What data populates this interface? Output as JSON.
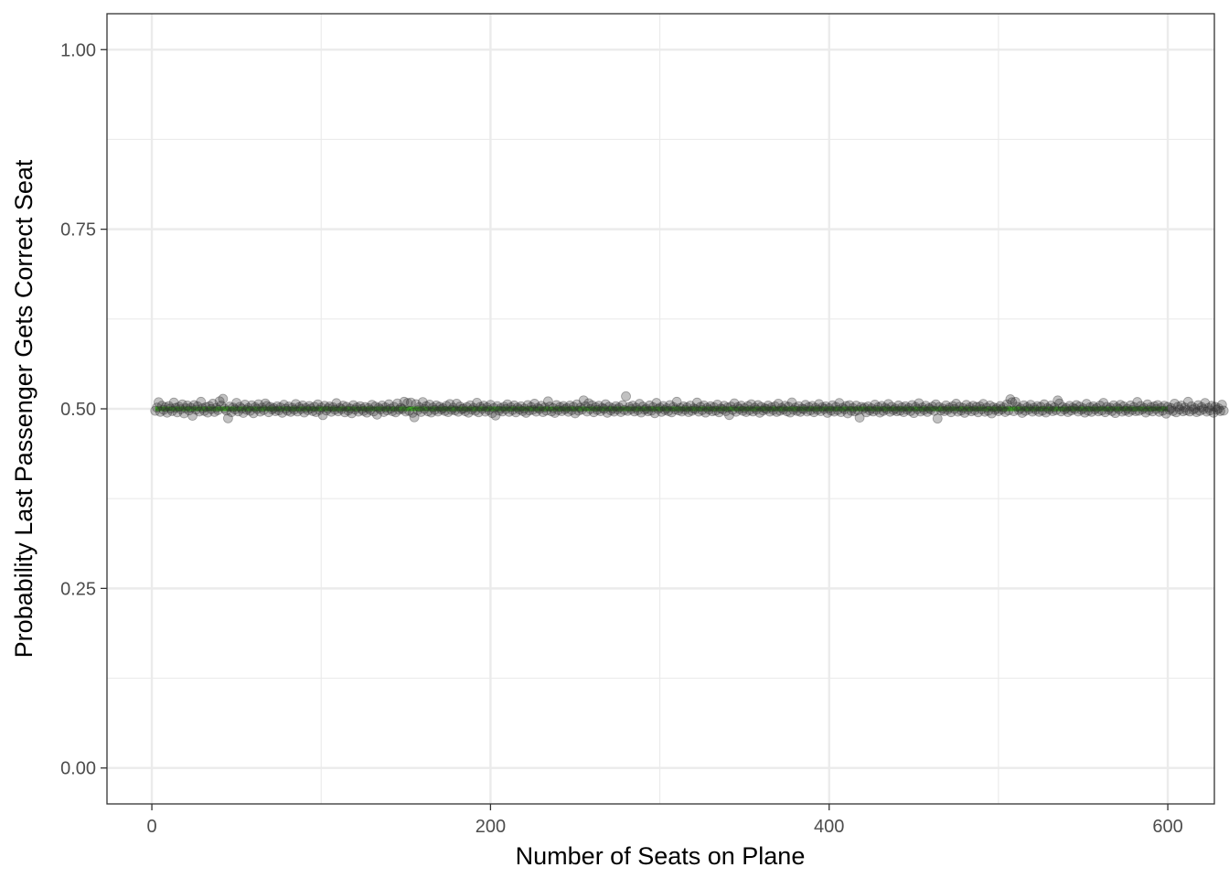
{
  "chart_data": {
    "type": "scatter",
    "title": "",
    "xlabel": "Number of Seats on Plane",
    "ylabel": "Probability Last Passenger Gets Correct Seat",
    "xlim": [
      -26.5,
      627.5
    ],
    "ylim": [
      -0.05,
      1.05
    ],
    "x_ticks": [
      0,
      200,
      400,
      600
    ],
    "x_tick_labels": [
      "0",
      "200",
      "400",
      "600"
    ],
    "y_ticks": [
      0.0,
      0.25,
      0.5,
      0.75,
      1.0
    ],
    "y_tick_labels": [
      "0.00",
      "0.25",
      "0.50",
      "0.75",
      "1.00"
    ],
    "x_minor_grid": [
      100,
      300,
      500
    ],
    "y_minor_grid": [
      0.125,
      0.375,
      0.625,
      0.875
    ],
    "grid": true,
    "legend": "none",
    "theme": "bw",
    "point_color": "#333333",
    "point_alpha": 0.3,
    "reference_line": {
      "y": 0.5,
      "x_range": [
        2,
        600
      ],
      "color": "#33ff00"
    },
    "series": [
      {
        "x_start": 2,
        "x_step": 1,
        "values_note_excluded": true,
        "y": [
          0.4973,
          0.5017,
          0.5092,
          0.4958,
          0.5043,
          0.4985,
          0.5021,
          0.4946,
          0.5038,
          0.5004,
          0.4969,
          0.5087,
          0.5012,
          0.4951,
          0.5029,
          0.4994,
          0.5061,
          0.4937,
          0.5008,
          0.5046,
          0.4978,
          0.5015,
          0.4904,
          0.5052,
          0.4989,
          0.5034,
          0.4962,
          0.5098,
          0.5007,
          0.4971,
          0.5024,
          0.4948,
          0.5036,
          0.4996,
          0.5071,
          0.4957,
          0.5013,
          0.4982,
          0.5105,
          0.5045,
          0.5139,
          0.5002,
          0.4976,
          0.4868,
          0.5031,
          0.4954,
          0.5018,
          0.4991,
          0.5083,
          0.4965,
          0.5027,
          0.5003,
          0.4943,
          0.5058,
          0.4986,
          0.5011,
          0.4972,
          0.5049,
          0.4939,
          0.5022,
          0.4998,
          0.5064,
          0.4961,
          0.5016,
          0.4983,
          0.5075,
          0.5041,
          0.4953,
          0.5026,
          0.4992,
          0.5009,
          0.4967,
          0.5035,
          0.4979,
          0.5019,
          0.4945,
          0.5057,
          0.5001,
          0.4974,
          0.5032,
          0.4958,
          0.5014,
          0.4987,
          0.5067,
          0.4963,
          0.5023,
          0.4996,
          0.5048,
          0.4949,
          0.5011,
          0.4981,
          0.5039,
          0.5005,
          0.4969,
          0.5028,
          0.4955,
          0.5062,
          0.4984,
          0.5017,
          0.4912,
          0.5042,
          0.4977,
          0.5006,
          0.5033,
          0.4959,
          0.5021,
          0.4988,
          0.5079,
          0.4966,
          0.5013,
          0.4994,
          0.5044,
          0.4952,
          0.5029,
          0.4975,
          0.5004,
          0.4938,
          0.5051,
          0.4989,
          0.5018,
          0.4961,
          0.5037,
          0.4997,
          0.4971,
          0.5025,
          0.4947,
          0.5009,
          0.4983,
          0.5056,
          0.4964,
          0.5032,
          0.4919,
          0.5014,
          0.4992,
          0.5046,
          0.4956,
          0.5019,
          0.4979,
          0.5063,
          0.5002,
          0.4968,
          0.5027,
          0.4951,
          0.5075,
          0.4987,
          0.5012,
          0.4996,
          0.5098,
          0.4962,
          0.5081,
          0.4974,
          0.5088,
          0.4944,
          0.4882,
          0.5065,
          0.4981,
          0.5022,
          0.4957,
          0.5094,
          0.4998,
          0.5036,
          0.4966,
          0.5059,
          0.4949,
          0.5017,
          0.4985,
          0.5047,
          0.4962,
          0.5028,
          0.4993,
          0.5009,
          0.4971,
          0.5041,
          0.4954,
          0.5066,
          0.4986,
          0.5015,
          0.4978,
          0.5072,
          0.4959,
          0.5031,
          0.4995,
          0.5004,
          0.4967,
          0.5024,
          0.4946,
          0.5049,
          0.4988,
          0.5013,
          0.4973,
          0.5084,
          0.4952,
          0.5026,
          0.4999,
          0.5045,
          0.4961,
          0.5019,
          0.4982,
          0.5056,
          0.4941,
          0.5011,
          0.4907,
          0.5038,
          0.4975,
          0.5008,
          0.4963,
          0.5029,
          0.4996,
          0.5062,
          0.4958,
          0.5021,
          0.4984,
          0.5047,
          0.4951,
          0.5016,
          0.4991,
          0.5035,
          0.4969,
          0.5003,
          0.4944,
          0.5053,
          0.4977,
          0.5025,
          0.4986,
          0.5071,
          0.4961,
          0.5014,
          0.4997,
          0.5042,
          0.4955,
          0.5018,
          0.4976,
          0.5104,
          0.5031,
          0.4965,
          0.5009,
          0.4943,
          0.5052,
          0.4983,
          0.5023,
          0.4968,
          0.5039,
          0.4993,
          0.5012,
          0.4959,
          0.5046,
          0.4981,
          0.5027,
          0.4937,
          0.5061,
          0.4974,
          0.5015,
          0.4989,
          0.5118,
          0.5034,
          0.4962,
          0.5078,
          0.4996,
          0.5049,
          0.4953,
          0.5021,
          0.4985,
          0.5043,
          0.4967,
          0.5012,
          0.4998,
          0.5064,
          0.4945,
          0.5029,
          0.4978,
          0.5006,
          0.4961,
          0.5037,
          0.4992,
          0.5018,
          0.4956,
          0.5051,
          0.4984,
          0.5174,
          0.4971,
          0.5026,
          0.4995,
          0.5044,
          0.4963,
          0.5014,
          0.4981,
          0.5069,
          0.4949,
          0.5031,
          0.4988,
          0.5003,
          0.4966,
          0.5047,
          0.4975,
          0.5022,
          0.4939,
          0.5082,
          0.4997,
          0.5016,
          0.4958,
          0.5039,
          0.4983,
          0.5008,
          0.4969,
          0.5053,
          0.4951,
          0.5024,
          0.4992,
          0.5098,
          0.4978,
          0.5011,
          0.4962,
          0.5034,
          0.4987,
          0.5019,
          0.4955,
          0.5045,
          0.4973,
          0.5006,
          0.4994,
          0.5087,
          0.4961,
          0.5027,
          0.4982,
          0.5048,
          0.4947,
          0.5013,
          0.4989,
          0.5036,
          0.4966,
          0.5021,
          0.4976,
          0.5059,
          0.4952,
          0.5004,
          0.4993,
          0.5042,
          0.4968,
          0.5017,
          0.4913,
          0.5031,
          0.4985,
          0.5076,
          0.4959,
          0.5023,
          0.4996,
          0.5044,
          0.4972,
          0.5009,
          0.4956,
          0.5038,
          0.4981,
          0.5064,
          0.4963,
          0.5015,
          0.4988,
          0.5052,
          0.4945,
          0.5026,
          0.4977,
          0.5007,
          0.4995,
          0.5046,
          0.4961,
          0.5019,
          0.4983,
          0.5034,
          0.4957,
          0.5072,
          0.4974,
          0.5012,
          0.4991,
          0.5043,
          0.4966,
          0.5028,
          0.4949,
          0.5089,
          0.4986,
          0.5016,
          0.4971,
          0.5037,
          0.4958,
          0.5003,
          0.4994,
          0.5055,
          0.4962,
          0.5024,
          0.4979,
          0.5041,
          0.4953,
          0.5013,
          0.4987,
          0.5066,
          0.4968,
          0.5021,
          0.4996,
          0.5035,
          0.4944,
          0.5008,
          0.4976,
          0.5049,
          0.4961,
          0.5027,
          0.4984,
          0.5081,
          0.4955,
          0.5014,
          0.4992,
          0.5039,
          0.4937,
          0.5051,
          0.4973,
          0.5011,
          0.4965,
          0.5044,
          0.4981,
          0.4878,
          0.5026,
          0.4997,
          0.5018,
          0.4952,
          0.5033,
          0.4978,
          0.5006,
          0.4963,
          0.5058,
          0.4986,
          0.5022,
          0.4948,
          0.5041,
          0.4971,
          0.5015,
          0.4993,
          0.5067,
          0.4959,
          0.5029,
          0.4982,
          0.5004,
          0.4966,
          0.5047,
          0.4976,
          0.5019,
          0.4954,
          0.5036,
          0.4989,
          0.5012,
          0.4969,
          0.5053,
          0.4941,
          0.5025,
          0.4995,
          0.5078,
          0.4962,
          0.5017,
          0.4984,
          0.5043,
          0.4957,
          0.5009,
          0.4991,
          0.5031,
          0.4973,
          0.5062,
          0.4864,
          0.5023,
          0.4979,
          0.5005,
          0.4968,
          0.5048,
          0.4986,
          0.5014,
          0.4953,
          0.5037,
          0.4997,
          0.5071,
          0.4961,
          0.5028,
          0.4977,
          0.5011,
          0.4944,
          0.5055,
          0.4988,
          0.5019,
          0.4966,
          0.5042,
          0.4981,
          0.5026,
          0.4952,
          0.5033,
          0.4993,
          0.5068,
          0.4959,
          0.5015,
          0.4974,
          0.5046,
          0.4936,
          0.5021,
          0.4985,
          0.5007,
          0.4967,
          0.5039,
          0.4991,
          0.5017,
          0.4956,
          0.5062,
          0.4978,
          0.5133,
          0.5092,
          0.4967,
          0.5097,
          0.5029,
          0.4984,
          0.5005,
          0.4943,
          0.5049,
          0.4972,
          0.5022,
          0.4994,
          0.5056,
          0.4961,
          0.5014,
          0.4987,
          0.5038,
          0.4958,
          0.5026,
          0.4976,
          0.5063,
          0.4949,
          0.5011,
          0.4993,
          0.5045,
          0.4968,
          0.5019,
          0.4982,
          0.5117,
          0.5074,
          0.4964,
          0.5024,
          0.4989,
          0.5009,
          0.4955,
          0.5041,
          0.4977,
          0.5016,
          0.4996,
          0.5052,
          0.4962,
          0.5031,
          0.4986,
          0.5006,
          0.4947,
          0.5069,
          0.4974,
          0.5021,
          0.4958,
          0.5037,
          0.4992,
          0.5012,
          0.4965,
          0.5044,
          0.4979,
          0.5083,
          0.4953,
          0.5027,
          0.4988,
          0.5014,
          0.4969,
          0.5049,
          0.4941,
          0.5018,
          0.4995,
          0.5056,
          0.4961,
          0.5033,
          0.4977,
          0.5002,
          0.4956,
          0.5047,
          0.4984,
          0.5023,
          0.4967,
          0.5095,
          0.4973,
          0.5039,
          0.4992,
          0.5012,
          0.4948,
          0.5061,
          0.4981,
          0.5021,
          0.4964,
          0.5034,
          0.4997,
          0.5053,
          0.4958,
          0.5015,
          0.4974,
          0.5043,
          0.4933,
          0.5026,
          0.4986,
          0.5009,
          0.4969,
          0.5072,
          0.4952,
          0.5029,
          0.4991,
          0.5046,
          0.4966,
          0.5018,
          0.4979,
          0.5098,
          0.4963,
          0.5035,
          0.4988,
          0.5007,
          0.4954,
          0.5051,
          0.4972,
          0.5024,
          0.4994,
          0.5081,
          0.4961,
          0.5013,
          0.4978,
          0.5042,
          0.4945,
          0.5028,
          0.4987,
          0.5006,
          0.4969,
          0.5057,
          0.4975
        ]
      }
    ]
  }
}
